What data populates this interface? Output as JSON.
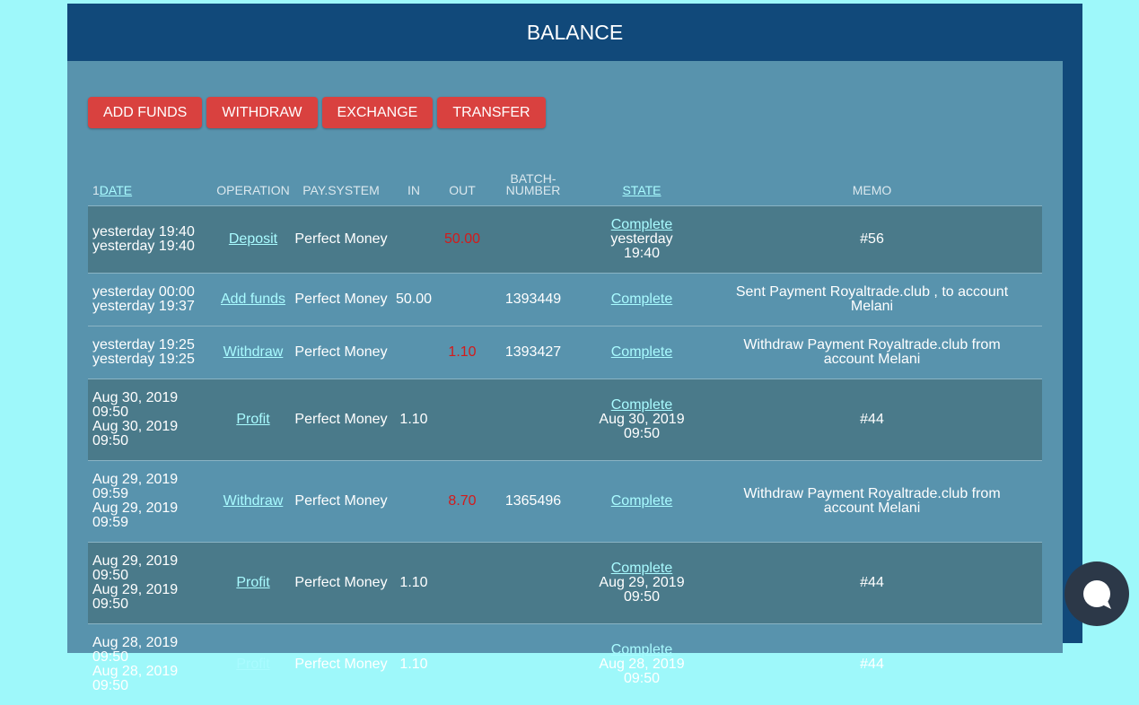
{
  "header": {
    "title": "BALANCE"
  },
  "buttons": [
    "ADD FUNDS",
    "WITHDRAW",
    "EXCHANGE",
    "TRANSFER"
  ],
  "table": {
    "columns": {
      "sort_index": "1",
      "date": "DATE",
      "operation": "OPERATION",
      "pay_system": "PAY.SYSTEM",
      "in": "IN",
      "out": "OUT",
      "batch": [
        "BATCH-",
        "NUMBER"
      ],
      "state": "STATE",
      "memo": "MEMO"
    },
    "rows": [
      {
        "dates": [
          "yesterday 19:40",
          "yesterday 19:40"
        ],
        "operation": "Deposit",
        "pay_system": "Perfect Money",
        "out": "50.00",
        "state": "Complete",
        "state_date": "yesterday 19:40",
        "memo": "#56"
      },
      {
        "dates": [
          "yesterday 00:00",
          "yesterday 19:37"
        ],
        "operation": "Add funds",
        "pay_system": "Perfect Money",
        "in": "50.00",
        "batch": "1393449",
        "state": "Complete",
        "memo": "Sent Payment Royaltrade.club , to account Melani"
      },
      {
        "dates": [
          "yesterday 19:25",
          "yesterday 19:25"
        ],
        "operation": "Withdraw",
        "pay_system": "Perfect Money",
        "out": "1.10",
        "batch": "1393427",
        "state": "Complete",
        "memo": "Withdraw Payment Royaltrade.club from account Melani"
      },
      {
        "dates": [
          "Aug 30, 2019 09:50",
          "Aug 30, 2019 09:50"
        ],
        "operation": "Profit",
        "pay_system": "Perfect Money",
        "in": "1.10",
        "state": "Complete",
        "state_date": "Aug 30, 2019 09:50",
        "memo": "#44"
      },
      {
        "dates": [
          "Aug 29, 2019 09:59",
          "Aug 29, 2019 09:59"
        ],
        "operation": "Withdraw",
        "pay_system": "Perfect Money",
        "out": "8.70",
        "batch": "1365496",
        "state": "Complete",
        "memo": "Withdraw Payment Royaltrade.club from account Melani"
      },
      {
        "dates": [
          "Aug 29, 2019 09:50",
          "Aug 29, 2019 09:50"
        ],
        "operation": "Profit",
        "pay_system": "Perfect Money",
        "in": "1.10",
        "state": "Complete",
        "state_date": "Aug 29, 2019 09:50",
        "memo": "#44"
      },
      {
        "dates": [
          "Aug 28, 2019 09:50",
          "Aug 28, 2019 09:50"
        ],
        "operation": "Profit",
        "pay_system": "Perfect Money",
        "in": "1.10",
        "state": "Complete",
        "state_date": "Aug 28, 2019 09:50",
        "memo": "#44"
      }
    ]
  }
}
